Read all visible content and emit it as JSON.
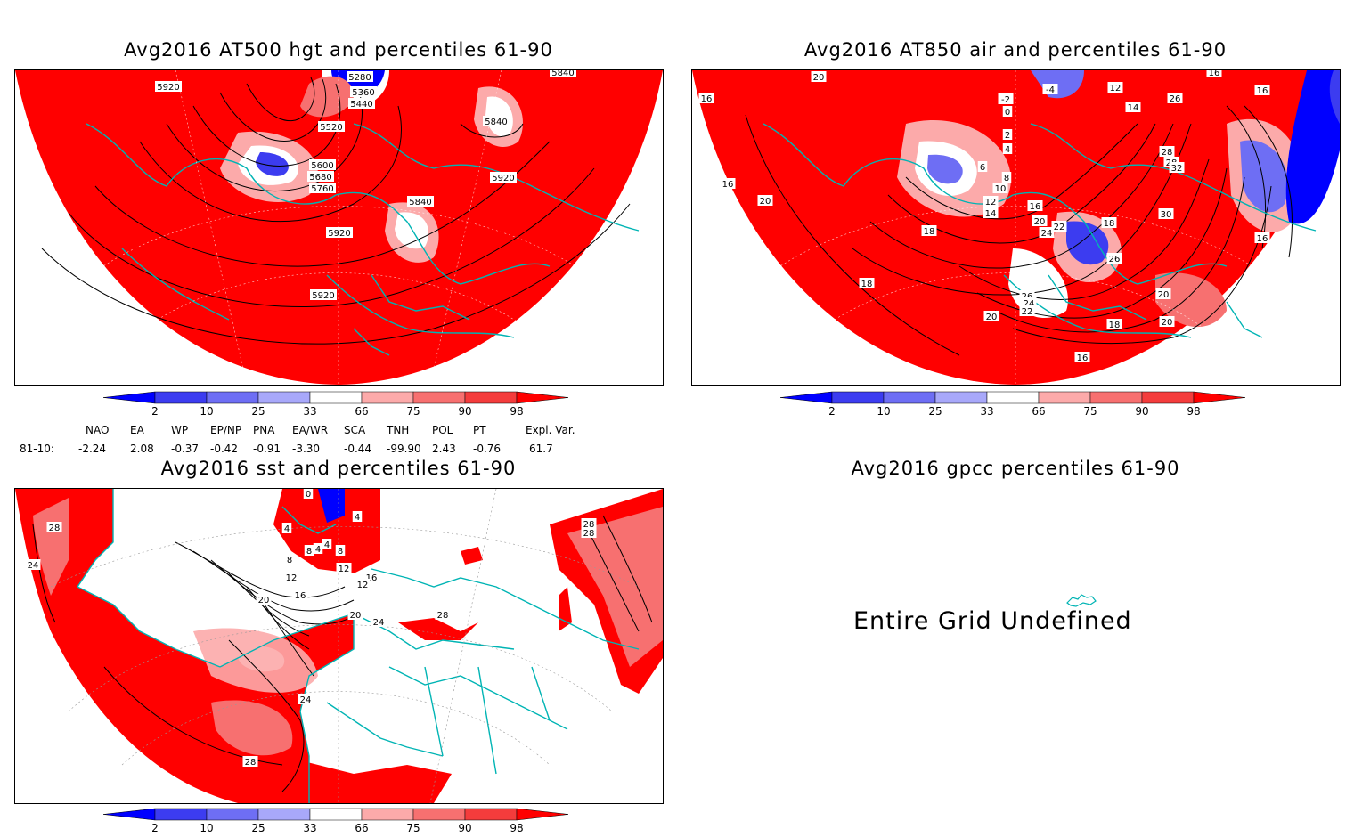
{
  "panels": {
    "hgt": {
      "title": "Avg2016 AT500 hgt and percentiles 61-90",
      "labels": [
        "5280",
        "5360",
        "5440",
        "5520",
        "5600",
        "5680",
        "5760",
        "5840",
        "5840",
        "5840",
        "5920",
        "5920",
        "5920",
        "5920"
      ]
    },
    "air": {
      "title": "Avg2016 AT850 air and percentiles 61-90",
      "labels": [
        "20",
        "-4",
        "-2",
        "0",
        "2",
        "4",
        "6",
        "8",
        "10",
        "12",
        "14",
        "16",
        "18",
        "20",
        "22",
        "24",
        "26",
        "28",
        "30",
        "32",
        "16",
        "18",
        "20",
        "16",
        "14",
        "12",
        "26",
        "28",
        "26",
        "24",
        "22",
        "20",
        "18",
        "16",
        "20",
        "16",
        "20",
        "18",
        "16",
        "16"
      ]
    },
    "sst": {
      "title": "Avg2016 sst and percentiles 61-90",
      "labels": [
        "28",
        "24",
        "0",
        "4",
        "4",
        "4",
        "8",
        "4",
        "8",
        "8",
        "12",
        "12",
        "16",
        "20",
        "20",
        "24",
        "28",
        "24",
        "28",
        "28",
        "28",
        "16",
        "12"
      ]
    },
    "gpcc": {
      "title": "Avg2016 gpcc percentiles 61-90",
      "message": "Entire Grid Undefined"
    }
  },
  "colorbar": {
    "ticks": [
      "2",
      "10",
      "25",
      "33",
      "66",
      "75",
      "90",
      "98"
    ],
    "colors": [
      "#0000ff",
      "#3c3cf0",
      "#6e6ef4",
      "#a8a8fa",
      "#ffffff",
      "#fcaaaa",
      "#f77070",
      "#f43c3c",
      "#ff0000"
    ]
  },
  "indices": {
    "header": [
      "NAO",
      "EA",
      "WP",
      "EP/NP",
      "PNA",
      "EA/WR",
      "SCA",
      "TNH",
      "POL",
      "PT",
      "Expl. Var."
    ],
    "row_label": "81-10:",
    "values": [
      "-2.24",
      "2.08",
      "-0.37",
      "-0.42",
      "-0.91",
      "-3.30",
      "-0.44",
      "-99.90",
      "2.43",
      "-0.76",
      "61.7"
    ]
  },
  "colors": {
    "map_red": "#ff0000",
    "coast": "#00b4b4",
    "contour": "#000000"
  }
}
